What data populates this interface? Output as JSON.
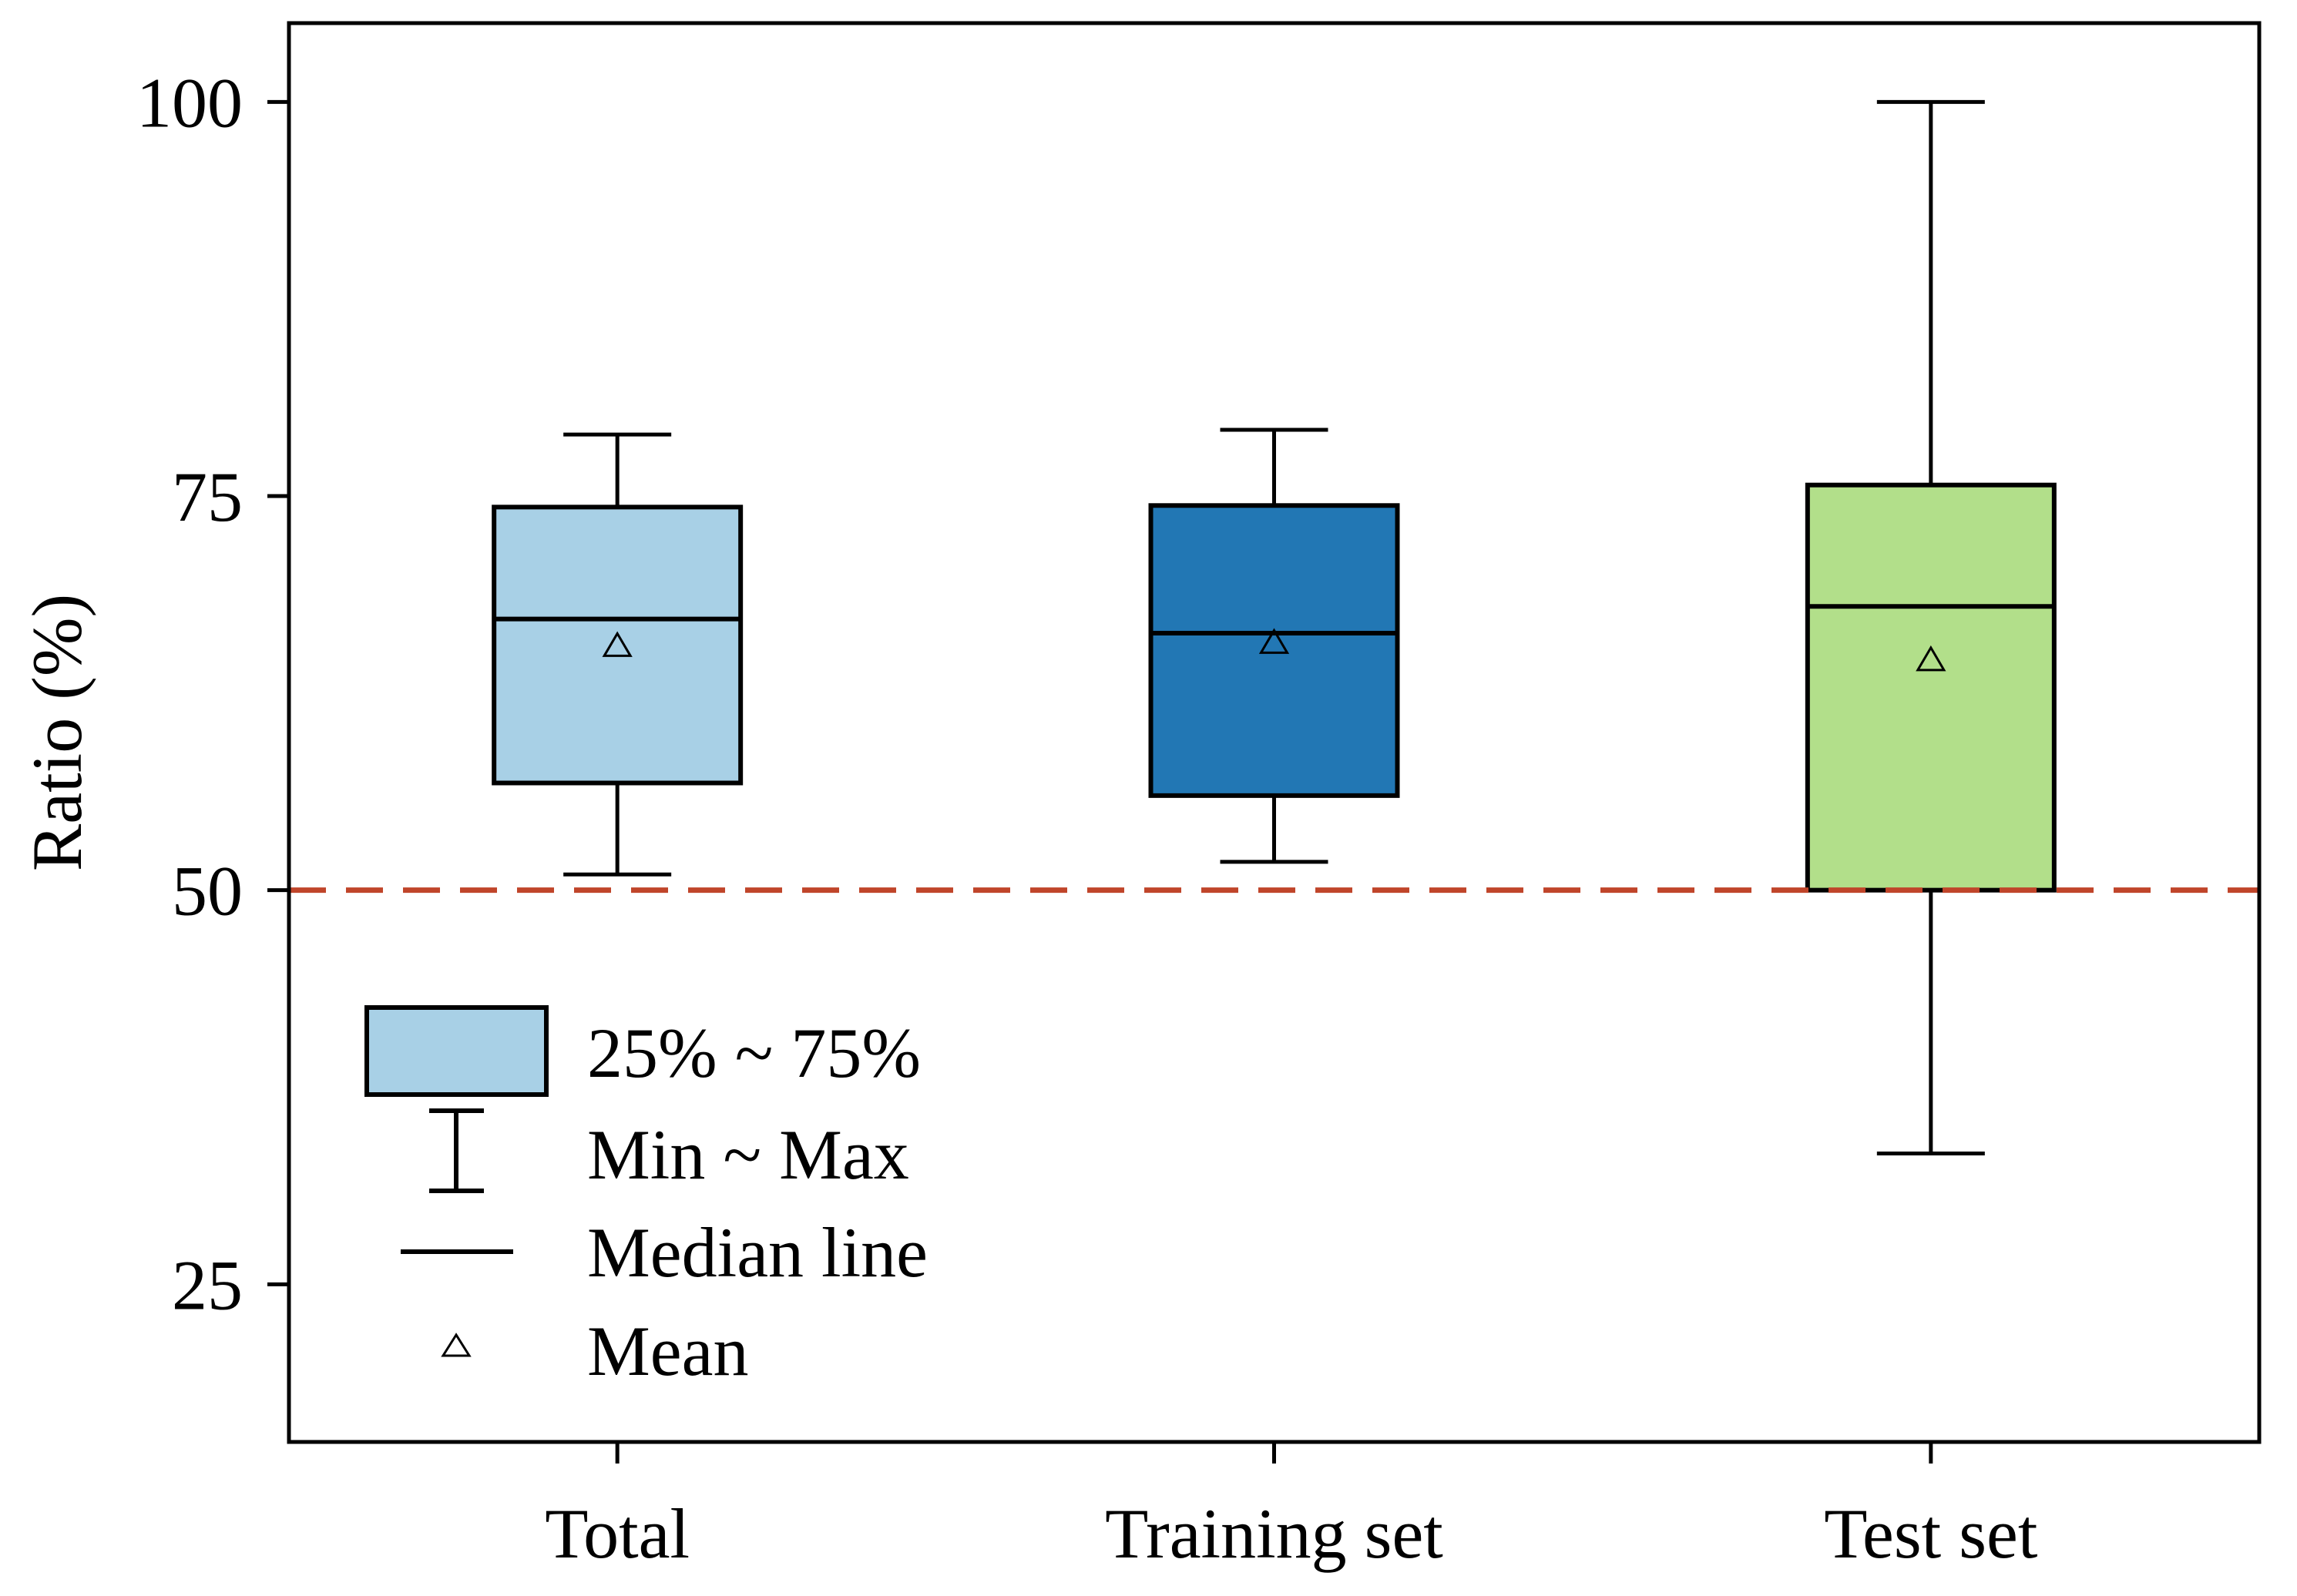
{
  "chart_data": {
    "type": "box",
    "ylabel": "Ratio (%)",
    "xlabel": "",
    "ylim": [
      15,
      105
    ],
    "yticks": [
      25,
      50,
      75,
      100
    ],
    "categories": [
      "Total",
      "Training set",
      "Test set"
    ],
    "boxes": [
      {
        "category": "Total",
        "min": 51.0,
        "q1": 56.8,
        "median": 67.2,
        "q3": 74.3,
        "max": 78.9,
        "mean": 65.5,
        "color": "#a8d0e6"
      },
      {
        "category": "Training set",
        "min": 51.8,
        "q1": 56.0,
        "median": 66.3,
        "q3": 74.4,
        "max": 79.2,
        "mean": 65.7,
        "color": "#2277b4"
      },
      {
        "category": "Test set",
        "min": 33.3,
        "q1": 50.0,
        "median": 68.0,
        "q3": 75.7,
        "max": 100.0,
        "mean": 64.6,
        "color": "#b2df8a"
      }
    ],
    "reference_line": {
      "y": 50,
      "style": "dashed",
      "color": "#c0452a"
    },
    "legend": {
      "position": "bottom-left",
      "items": [
        {
          "key": "box",
          "label": "25% ~ 75%"
        },
        {
          "key": "whisker",
          "label": "Min ~ Max"
        },
        {
          "key": "median",
          "label": "Median line"
        },
        {
          "key": "mean",
          "label": "Mean"
        }
      ]
    }
  }
}
